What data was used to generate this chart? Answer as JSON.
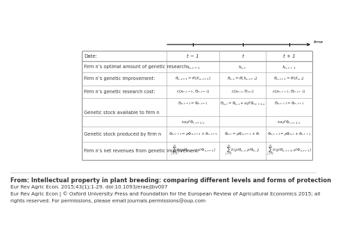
{
  "time_label": "time",
  "col_header": [
    "Date:",
    "t − 1",
    "t",
    "t + 1"
  ],
  "row_labels": [
    "Firm n’s optimal amount of genetic research",
    "Firm n’s genetic improvement:",
    "Firm n’s genetic research cost:",
    "Genetic stock available to firm n",
    "",
    "Genetic stock produced by firm n",
    "Firm n’s net revenues from genetic improvement"
  ],
  "cells": {
    "r0": [
      "$\\hat{x}_{n,t-1}$",
      "$\\hat{x}_{n,t}$",
      "$\\hat{x}_{n,t+1}$"
    ],
    "r1": [
      "$\\theta_{n,t-1}=\\theta(\\hat{x}_{n,t-1})$",
      "$\\theta_{n,t}=\\theta(\\hat{x}_{n,t-1})$",
      "$\\theta_{n,t+1}=\\theta(\\hat{x}_{n,t})$"
    ],
    "r2": [
      "$c(x_{n,t-1},\\Theta_{n,t-1})$",
      "$c(x_{n,t},\\Theta_{n,t})$",
      "$c(x_{n,t+1},\\Theta_{n,t+1})$"
    ],
    "r3a": [
      "$\\Theta_{n,t-1}=\\Phi_{n,t-1}$",
      "$\\Theta_{n,t}=\\Phi_{n,t}+\\alpha\\rho^f\\Phi_{f,t-1,n}$",
      "$\\Theta_{n,t+1}=\\Phi_{n,t+1}$"
    ],
    "r3b": [
      "$+\\alpha\\rho^f\\Phi_{f,t-1,n}$",
      "",
      "$+\\alpha\\rho^f\\Phi_{f,t+1,n}$"
    ],
    "r5": [
      "$\\Phi_{n,t-1}=\\rho\\Phi_{n,t-2}+\\theta_{n,t-1}$",
      "$\\Phi_{n,t}=\\rho\\Phi_{n,t-1}+\\theta_t$",
      "$\\Phi_{n,t+1}=\\rho\\Phi_{n,t}+\\theta_{n,t+1}$"
    ],
    "r6": [
      "$\\sum_{j=0}^{\\infty}h(\\rho^j\\theta_{n,t-1},\\rho^j\\Phi_{n,t-1})$",
      "$\\sum_{j=0}^{\\infty}h(\\rho^j\\theta_{n,t},\\rho^j\\Phi_{n,t})$",
      "$\\sum_{j=0}^{\\infty}h(\\rho^j\\theta_{n,t+1},\\rho^j\\Phi_{n,t+1})$"
    ]
  },
  "footer_lines": [
    "From: Intellectual property in plant breeding: comparing different levels and forms of protection",
    "Eur Rev Agric Econ. 2015;43(1):1-29. doi:10.1093/erae/jbv007",
    "Eur Rev Agric Econ | © Oxford University Press and Foundation for the European Review of Agricultural Economics 2015; all",
    "rights reserved. For permissions, please email journals.permissions@oup.com"
  ],
  "bg_color": "#ffffff",
  "border_color": "#999999",
  "text_color": "#333333",
  "footer_sep_color": "#cccccc"
}
